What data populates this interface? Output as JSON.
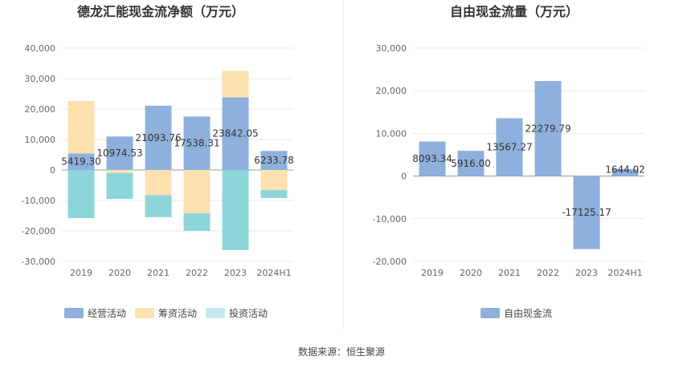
{
  "source": "数据来源：恒生聚源",
  "colors": {
    "operating": "#8eb0dc",
    "financing": "#fde1b0",
    "investing": "#8cd6da",
    "free_cf": "#8eb0dc",
    "grid": "#e8e8e8",
    "axis": "#aaaaaa",
    "divider": "#e8e8e8"
  },
  "chart_data": [
    {
      "type": "bar",
      "stacked": true,
      "title": "德龙汇能现金流净额（万元）",
      "categories": [
        "2019",
        "2020",
        "2021",
        "2022",
        "2023",
        "2024H1"
      ],
      "ylim": [
        -30000,
        40000
      ],
      "yticks": [
        -30000,
        -20000,
        -10000,
        0,
        10000,
        20000,
        30000,
        40000
      ],
      "ytick_labels": [
        "-30,000",
        "-20,000",
        "-10,000",
        "0",
        "10,000",
        "20,000",
        "30,000",
        "40,000"
      ],
      "grid": true,
      "legend_position": "bottom",
      "series": [
        {
          "name": "经营活动",
          "color_key": "operating",
          "values": [
            5419.3,
            10974.53,
            21093.76,
            17538.31,
            23842.05,
            6233.78
          ],
          "labels": [
            "5419.30",
            "10974.53",
            "21093.76",
            "17538.31",
            "23842.05",
            "6233.78"
          ]
        },
        {
          "name": "筹资活动",
          "color_key": "financing",
          "values": [
            17200,
            -1000,
            -8300,
            -14200,
            8700,
            -6600
          ]
        },
        {
          "name": "投资活动",
          "color_key": "investing",
          "values": [
            -15800,
            -8500,
            -7200,
            -5800,
            -26300,
            -2600
          ]
        }
      ]
    },
    {
      "type": "bar",
      "title": "自由现金流量（万元）",
      "categories": [
        "2019",
        "2020",
        "2021",
        "2022",
        "2023",
        "2024H1"
      ],
      "ylim": [
        -20000,
        30000
      ],
      "yticks": [
        -20000,
        -10000,
        0,
        10000,
        20000,
        30000
      ],
      "ytick_labels": [
        "-20,000",
        "-10,000",
        "0",
        "10,000",
        "20,000",
        "30,000"
      ],
      "grid": true,
      "legend_position": "bottom",
      "series": [
        {
          "name": "自由现金流",
          "color_key": "free_cf",
          "values": [
            8093.34,
            5916.0,
            13567.27,
            22279.79,
            -17125.17,
            1644.02
          ],
          "labels": [
            "8093.34",
            "5916.00",
            "13567.27",
            "22279.79",
            "-17125.17",
            "1644.02"
          ]
        }
      ]
    }
  ]
}
